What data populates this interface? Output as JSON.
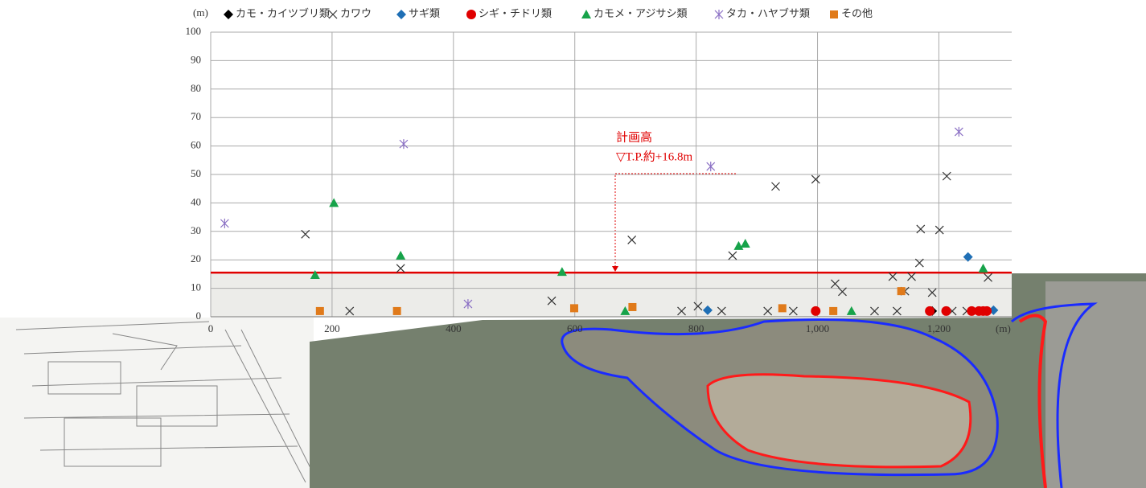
{
  "chart_data": {
    "type": "scatter",
    "y_label": "(m)",
    "x_label": "(m)",
    "annotation_lines": [
      "計画高",
      "▽T.P.約+16.8m"
    ],
    "plan_line": 15.5,
    "xlim": [
      0,
      1320
    ],
    "ylim": [
      0,
      100
    ],
    "xticks": [
      0,
      200,
      400,
      600,
      800,
      {
        "value": 1000,
        "label": "1,000"
      },
      {
        "value": 1200,
        "label": "1,200"
      }
    ],
    "yticks": [
      0,
      10,
      20,
      30,
      40,
      50,
      60,
      70,
      80,
      90,
      100
    ],
    "grid": true,
    "legend": "top",
    "series": [
      {
        "name": "カモ・カイツブリ類",
        "color": "#000000",
        "marker": "diamond",
        "x": [
          1189
        ],
        "values": [
          2
        ]
      },
      {
        "name": "カワウ",
        "color": "#333333",
        "marker": "cross",
        "x": [
          156,
          229,
          313,
          562,
          694,
          776,
          803,
          842,
          860,
          918,
          931,
          960,
          997,
          1029,
          1041,
          1094,
          1124,
          1131,
          1144,
          1155,
          1168,
          1170,
          1189,
          1201,
          1213,
          1222,
          1246,
          1281
        ],
        "values": [
          29,
          2,
          17,
          5.6,
          27,
          2,
          3.7,
          2,
          21.5,
          2,
          45.8,
          2,
          48.3,
          11.6,
          8.8,
          2,
          14.1,
          2,
          9,
          14.1,
          18.9,
          30.8,
          8.5,
          30.5,
          49.4,
          2,
          2,
          13.8
        ]
      },
      {
        "name": "サギ類",
        "color": "#1f6fb5",
        "marker": "diamond",
        "x": [
          819,
          1248,
          1290
        ],
        "values": [
          2.3,
          21,
          2.3
        ]
      },
      {
        "name": "シギ・チドリ類",
        "color": "#e00000",
        "marker": "circle",
        "x": [
          997,
          1185,
          1212,
          1254,
          1266,
          1273,
          1279
        ],
        "values": [
          2,
          2,
          2,
          2,
          2,
          2,
          2
        ]
      },
      {
        "name": "カモメ・アジサシ類",
        "color": "#17a34a",
        "marker": "triangle",
        "x": [
          172,
          203,
          313,
          579,
          683,
          870,
          881,
          1056,
          1273
        ],
        "values": [
          14.7,
          40,
          21.5,
          15.8,
          2,
          24.9,
          25.7,
          2,
          17
        ]
      },
      {
        "name": "タカ・ハヤブサ類",
        "color": "#8a6fc4",
        "marker": "asterisk",
        "x": [
          23,
          318,
          424,
          824,
          1233
        ],
        "values": [
          32.8,
          60.7,
          4.5,
          52.8,
          65
        ]
      },
      {
        "name": "その他",
        "color": "#e07a1a",
        "marker": "square",
        "x": [
          180,
          307,
          599,
          695,
          942,
          1026,
          1138
        ],
        "values": [
          2,
          2,
          3,
          3.4,
          3,
          2,
          9
        ]
      }
    ]
  }
}
